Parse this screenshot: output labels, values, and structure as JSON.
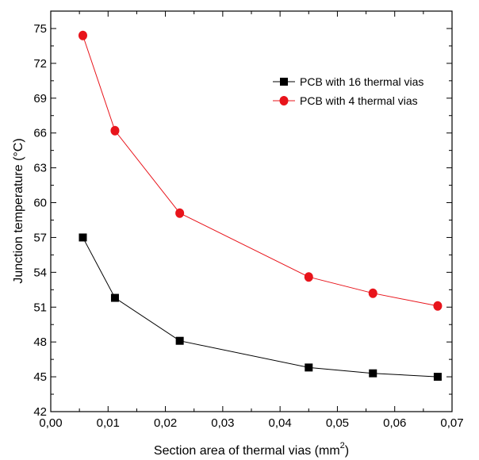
{
  "chart_data": {
    "type": "line",
    "title": "",
    "xlabel": "Section area of thermal vias (mm",
    "xlabel_sup": "2",
    "xlabel_end": ")",
    "ylabel": "Junction temperature (°C)",
    "xlim": [
      0.0,
      0.07
    ],
    "ylim": [
      42,
      76.5
    ],
    "x_ticks": [
      0.0,
      0.01,
      0.02,
      0.03,
      0.04,
      0.05,
      0.06,
      0.07
    ],
    "x_tick_labels": [
      "0,00",
      "0,01",
      "0,02",
      "0,03",
      "0,04",
      "0,05",
      "0,06",
      "0,07"
    ],
    "y_ticks": [
      42,
      45,
      48,
      51,
      54,
      57,
      60,
      63,
      66,
      69,
      72,
      75
    ],
    "y_tick_labels": [
      "42",
      "45",
      "48",
      "51",
      "54",
      "57",
      "60",
      "63",
      "66",
      "69",
      "72",
      "75"
    ],
    "grid": false,
    "legend_position": "top-right",
    "series": [
      {
        "name": "PCB with 16 thermal vias",
        "color": "#000000",
        "marker": "square",
        "x": [
          0.0056,
          0.0112,
          0.0225,
          0.045,
          0.0562,
          0.0675
        ],
        "y": [
          57.0,
          51.8,
          48.1,
          45.8,
          45.3,
          45.0
        ]
      },
      {
        "name": "PCB with 4 thermal vias",
        "color": "#e8141b",
        "marker": "circle",
        "x": [
          0.0056,
          0.0112,
          0.0225,
          0.045,
          0.0562,
          0.0675
        ],
        "y": [
          74.4,
          66.2,
          59.1,
          53.6,
          52.2,
          51.1
        ]
      }
    ]
  }
}
